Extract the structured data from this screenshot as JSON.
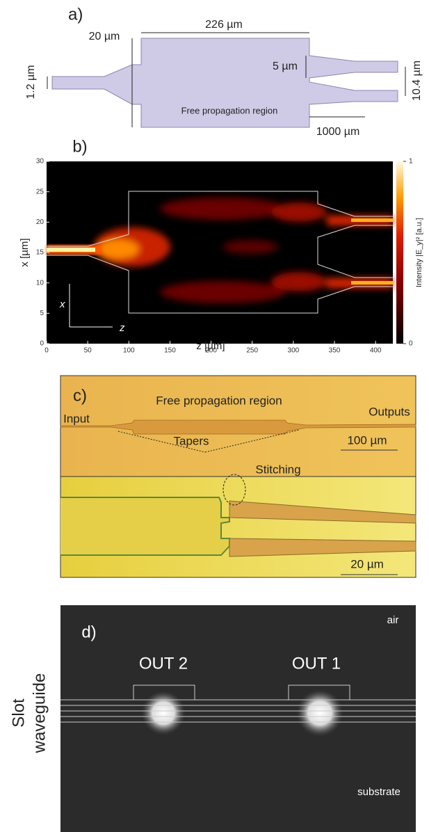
{
  "panel_a": {
    "label": "a)",
    "dim_fpr_width": "226 µm",
    "dim_fpr_height": "20 µm",
    "dim_input_width": "1.2 µm",
    "dim_output_width": "5 µm",
    "dim_output_pitch": "10.4 µm",
    "dim_length": "1000 µm",
    "region_label": "Free propagation region"
  },
  "panel_b": {
    "label": "b)",
    "xlabel": "z [µm]",
    "ylabel": "x [µm]",
    "xlim": [
      0,
      421
    ],
    "ylim": [
      0,
      30
    ],
    "xticks": [
      0,
      50,
      100,
      150,
      200,
      250,
      300,
      350,
      400
    ],
    "yticks": [
      0,
      5,
      10,
      15,
      20,
      25,
      30
    ],
    "axis_x": "x",
    "axis_z": "z",
    "colorbar": {
      "label": "Intensity |E_y|² [a.u.]",
      "lim": [
        0,
        1
      ],
      "ticks": [
        0,
        1
      ]
    }
  },
  "panel_c": {
    "label": "c)",
    "region_label": "Free propagation region",
    "input": "Input",
    "outputs": "Outputs",
    "tapers": "Tapers",
    "scale_top": "100 µm",
    "stitching": "Stitching",
    "scale_bottom": "20 µm"
  },
  "panel_d": {
    "label": "d)",
    "air": "air",
    "out2": "OUT 2",
    "out1": "OUT 1",
    "substrate": "substrate",
    "side_label_1": "Slot",
    "side_label_2": "waveguide"
  }
}
